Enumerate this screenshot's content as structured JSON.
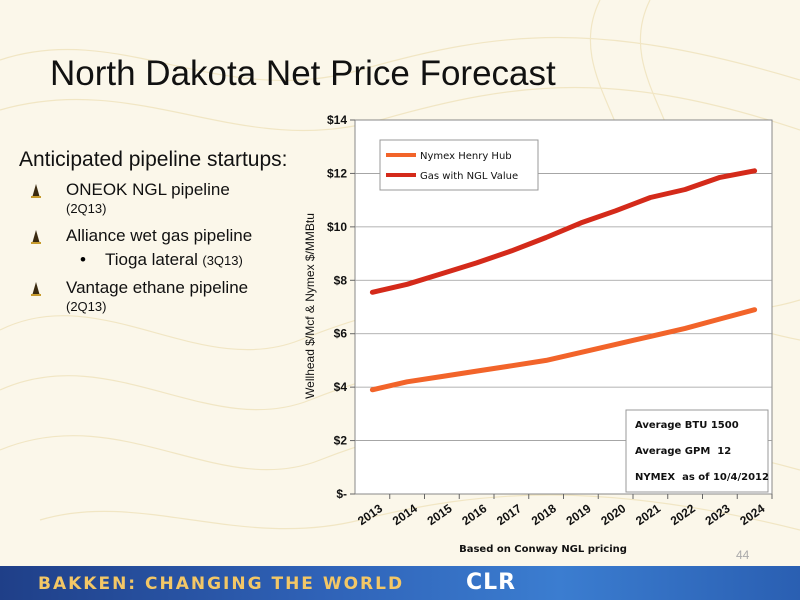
{
  "slide": {
    "title": "North Dakota Net Price Forecast",
    "subhead": "Anticipated pipeline startups:",
    "bullets": [
      {
        "main": "ONEOK NGL pipeline",
        "sub": "(2Q13)"
      },
      {
        "main": "Alliance wet gas pipeline",
        "sub": ""
      },
      {
        "main": "Tioga lateral",
        "sub": "(3Q13)"
      },
      {
        "main": "Vantage ethane pipeline",
        "sub": "(2Q13)"
      }
    ],
    "page_number": "44",
    "footer_text": "BAKKEN: CHANGING THE WORLD",
    "footer_logo": "CLR"
  },
  "chart_data": {
    "type": "line",
    "ylabel": "Wellhead $/Mcf & Nymex $/MMBtu",
    "xlabel": "Based on Conway NGL pricing",
    "categories": [
      "2013",
      "2014",
      "2015",
      "2016",
      "2017",
      "2018",
      "2019",
      "2020",
      "2021",
      "2022",
      "2023",
      "2024"
    ],
    "ylim": [
      0,
      14
    ],
    "y_ticks": [
      0,
      2,
      4,
      6,
      8,
      10,
      12,
      14
    ],
    "y_tick_labels": [
      "$-",
      "$2",
      "$4",
      "$6",
      "$8",
      "$10",
      "$12",
      "$14"
    ],
    "grid": true,
    "legend": "top-left",
    "series": [
      {
        "name": "Nymex Henry Hub",
        "color": "#f2642a",
        "values": [
          3.9,
          4.2,
          4.4,
          4.6,
          4.8,
          5.0,
          5.3,
          5.6,
          5.9,
          6.2,
          6.55,
          6.9
        ]
      },
      {
        "name": "Gas with NGL Value",
        "color": "#d42a1a",
        "values": [
          7.55,
          7.85,
          8.25,
          8.65,
          9.1,
          9.6,
          10.15,
          10.6,
          11.1,
          11.4,
          11.85,
          12.1
        ]
      }
    ],
    "annotations": [
      "Average BTU 1500",
      "Average GPM  12",
      "NYMEX  as of 10/4/2012"
    ]
  }
}
